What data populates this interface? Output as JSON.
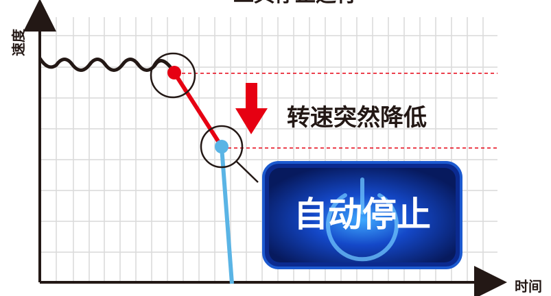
{
  "title_partial": "工具停止运行",
  "y_axis_label": "速度",
  "x_axis_label": "时间",
  "annotation": "转速突然降低",
  "stop_badge": {
    "label": "自动停止",
    "icon": "power-icon"
  },
  "colors": {
    "axis": "#231815",
    "grid": "#d9d9d9",
    "wave": "#231815",
    "drop_line": "#e60012",
    "stop_line": "#5ab4e5",
    "dashed_guide": "#e60012",
    "arrow": "#e60012",
    "badge_bg": "#0a2a8a",
    "badge_border": "#1a4fc4",
    "badge_text": "#ffffff"
  }
}
